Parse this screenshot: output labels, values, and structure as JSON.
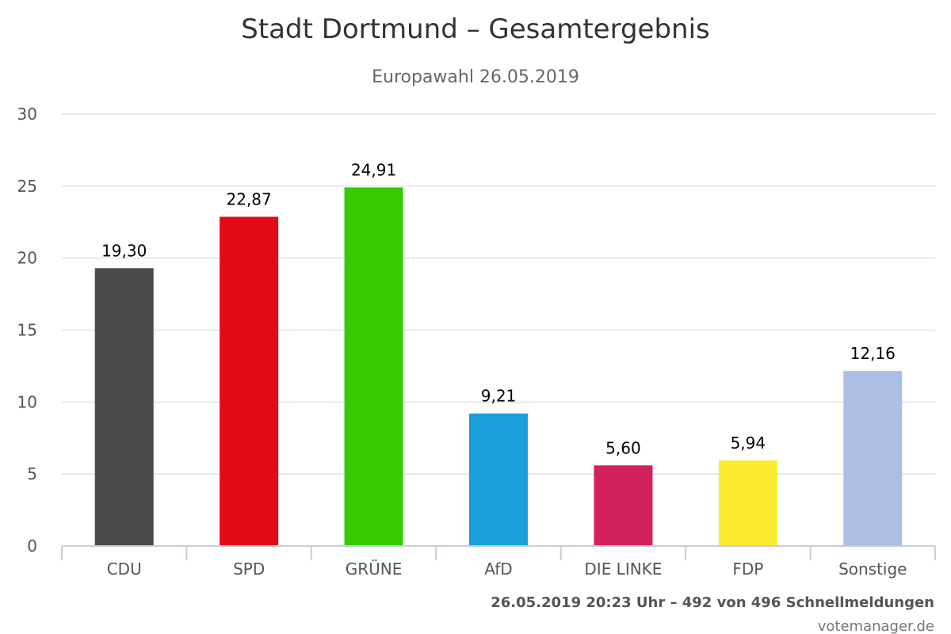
{
  "chart_data": {
    "type": "bar",
    "title": "Stadt Dortmund – Gesamtergebnis",
    "subtitle": "Europawahl 26.05.2019",
    "xlabel": "",
    "ylabel": "",
    "ylim": [
      0,
      30
    ],
    "yticks": [
      "0",
      "5",
      "10",
      "15",
      "20",
      "25",
      "30"
    ],
    "grid": true,
    "categories": [
      "CDU",
      "SPD",
      "GRÜNE",
      "AfD",
      "DIE LINKE",
      "FDP",
      "Sonstige"
    ],
    "values": [
      19.3,
      22.87,
      24.91,
      9.21,
      5.6,
      5.94,
      12.16
    ],
    "value_labels": [
      "19,30",
      "22,87",
      "24,91",
      "9,21",
      "5,60",
      "5,94",
      "12,16"
    ],
    "colors": [
      "#4a4a4a",
      "#e30a17",
      "#35cb00",
      "#1a9fdb",
      "#d2215c",
      "#fbeb2f",
      "#aabfe3"
    ]
  },
  "footer": {
    "status": "26.05.2019 20:23 Uhr – 492 von 496 Schnellmeldungen",
    "credit": "votemanager.de"
  }
}
